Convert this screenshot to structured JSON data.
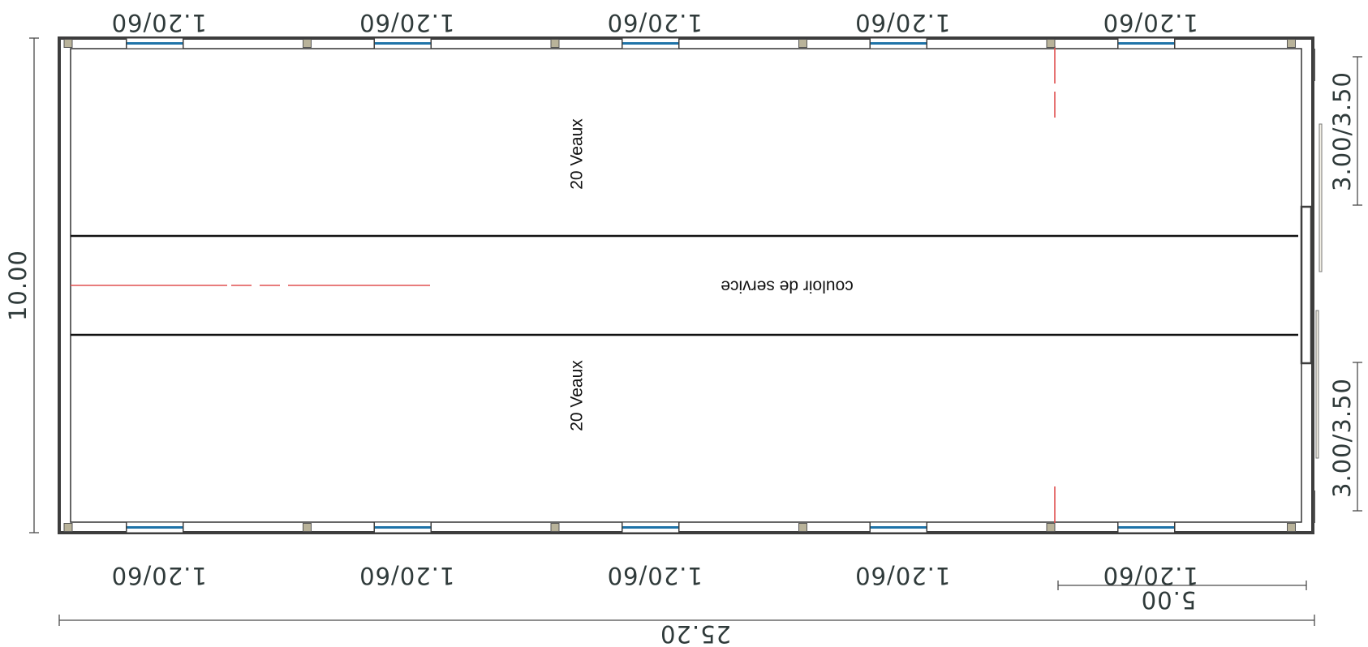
{
  "plan": {
    "title": "",
    "window_label": "1.20/60",
    "length_total": "25.20",
    "bay_length": "5.00",
    "width_total": "10.00",
    "door_label": "3.00/3.50",
    "pen_label": "20 Veaux",
    "corridor_label": "couloir de service",
    "colors": {
      "wall": "#3d3d3d",
      "window": "#1e73a8",
      "pillar": "#b9b39a",
      "axis_line": "#e05050"
    }
  }
}
